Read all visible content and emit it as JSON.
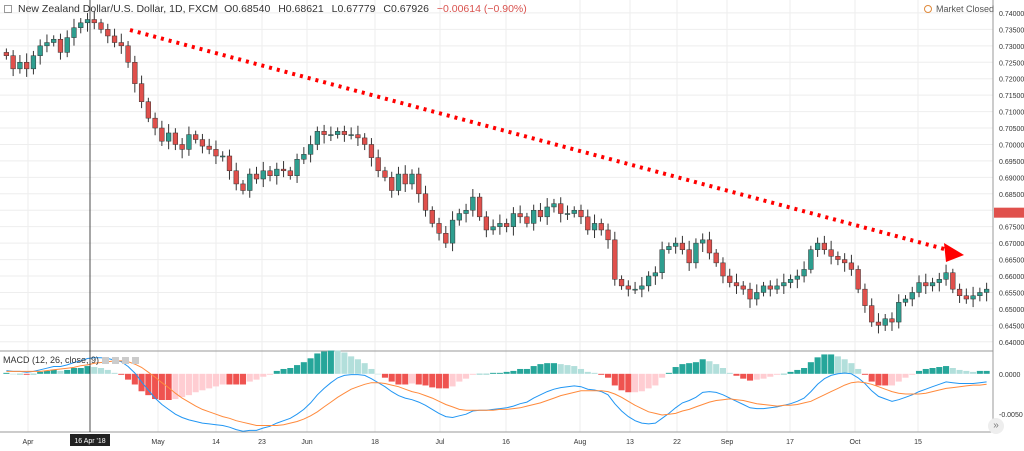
{
  "header": {
    "symbol": "New Zealand Dollar/U.S. Dollar, 1D, FXCM",
    "open": "O0.68540",
    "high": "H0.68621",
    "low": "L0.67779",
    "close": "C0.67926",
    "change": "−0.00614 (−0.90%)"
  },
  "market_status": "Market Closed",
  "macd_label": "MACD (12, 26, close, 9)",
  "crosshair_label": "16 Apr '18",
  "colors": {
    "up": "#2e9e8f",
    "down": "#e0504c",
    "hist_up_strong": "#26a69a",
    "hist_up_weak": "#b2dfdb",
    "hist_down_strong": "#ef5350",
    "hist_down_weak": "#ffcdd2",
    "macd": "#2196f3",
    "signal": "#ff8a3c",
    "arrow": "#ff0000",
    "grid": "#eeeeee"
  },
  "chart_data": [
    {
      "type": "candlestick",
      "title": "New Zealand Dollar/U.S. Dollar, 1D, FXCM",
      "y_ticks": [
        "0.74000",
        "0.73500",
        "0.73000",
        "0.72500",
        "0.72000",
        "0.71500",
        "0.71000",
        "0.70500",
        "0.70000",
        "0.69500",
        "0.69000",
        "0.68500",
        "0.68000",
        "0.67500",
        "0.67000",
        "0.66500",
        "0.66000",
        "0.65500",
        "0.65000",
        "0.64500",
        "0.64000"
      ],
      "ylim": [
        0.6375,
        0.7415
      ],
      "x_ticks": [
        "Apr",
        "16 Apr '18",
        "May",
        "14",
        "23",
        "Jun",
        "18",
        "Jul",
        "16",
        "Aug",
        "13",
        "22",
        "Sep",
        "17",
        "Oct",
        "15"
      ],
      "trend_arrow": {
        "style": "dotted",
        "direction": "down"
      },
      "closes": [
        0.727,
        0.723,
        0.725,
        0.723,
        0.727,
        0.73,
        0.731,
        0.732,
        0.728,
        0.7325,
        0.7355,
        0.737,
        0.738,
        0.737,
        0.735,
        0.733,
        0.731,
        0.73,
        0.725,
        0.7185,
        0.713,
        0.708,
        0.705,
        0.701,
        0.7035,
        0.7,
        0.6985,
        0.703,
        0.7015,
        0.6995,
        0.6985,
        0.6965,
        0.6965,
        0.692,
        0.688,
        0.686,
        0.691,
        0.6895,
        0.692,
        0.6905,
        0.6925,
        0.692,
        0.6905,
        0.6955,
        0.697,
        0.7,
        0.704,
        0.703,
        0.703,
        0.704,
        0.703,
        0.703,
        0.702,
        0.7,
        0.696,
        0.692,
        0.69,
        0.686,
        0.691,
        0.688,
        0.691,
        0.685,
        0.68,
        0.676,
        0.673,
        0.67,
        0.677,
        0.679,
        0.68,
        0.684,
        0.678,
        0.674,
        0.675,
        0.676,
        0.675,
        0.679,
        0.678,
        0.676,
        0.68,
        0.678,
        0.681,
        0.682,
        0.679,
        0.679,
        0.68,
        0.678,
        0.674,
        0.676,
        0.674,
        0.671,
        0.659,
        0.657,
        0.656,
        0.656,
        0.657,
        0.66,
        0.661,
        0.668,
        0.669,
        0.67,
        0.668,
        0.664,
        0.67,
        0.671,
        0.667,
        0.664,
        0.66,
        0.658,
        0.657,
        0.656,
        0.653,
        0.655,
        0.657,
        0.656,
        0.657,
        0.658,
        0.659,
        0.66,
        0.662,
        0.668,
        0.67,
        0.668,
        0.666,
        0.665,
        0.664,
        0.662,
        0.656,
        0.651,
        0.646,
        0.645,
        0.647,
        0.646,
        0.652,
        0.653,
        0.655,
        0.658,
        0.657,
        0.658,
        0.659,
        0.661,
        0.656,
        0.654,
        0.653,
        0.654,
        0.655,
        0.656
      ]
    },
    {
      "type": "macd",
      "title": "MACD (12, 26, close, 9)",
      "y_ticks": [
        "0.0000",
        "-0.0050"
      ],
      "ylim": [
        -0.0072,
        0.0027
      ],
      "series": [
        {
          "name": "MACD",
          "values": [
            0.0004,
            0.0003,
            0.0003,
            0.0002,
            0.0003,
            0.0005,
            0.0007,
            0.0009,
            0.0009,
            0.0011,
            0.0014,
            0.0016,
            0.0019,
            0.002,
            0.002,
            0.0019,
            0.0017,
            0.0015,
            0.0009,
            0.0001,
            -0.001,
            -0.002,
            -0.003,
            -0.0038,
            -0.0044,
            -0.005,
            -0.0054,
            -0.0057,
            -0.0059,
            -0.0061,
            -0.0062,
            -0.0063,
            -0.0064,
            -0.0066,
            -0.0069,
            -0.0071,
            -0.007,
            -0.007,
            -0.0067,
            -0.0065,
            -0.0061,
            -0.0058,
            -0.0055,
            -0.005,
            -0.0044,
            -0.0036,
            -0.0026,
            -0.0018,
            -0.0011,
            -0.0005,
            -0.0002,
            -0.0001,
            -0.0001,
            -0.0002,
            -0.0006,
            -0.0011,
            -0.0016,
            -0.0022,
            -0.0027,
            -0.003,
            -0.0032,
            -0.0035,
            -0.0039,
            -0.0044,
            -0.0049,
            -0.0053,
            -0.0054,
            -0.0052,
            -0.005,
            -0.0046,
            -0.0045,
            -0.0045,
            -0.0044,
            -0.0043,
            -0.0042,
            -0.004,
            -0.0037,
            -0.0035,
            -0.003,
            -0.0026,
            -0.0022,
            -0.0019,
            -0.0017,
            -0.0016,
            -0.0015,
            -0.0016,
            -0.0019,
            -0.002,
            -0.0022,
            -0.0026,
            -0.0037,
            -0.0046,
            -0.0053,
            -0.0058,
            -0.0061,
            -0.0062,
            -0.0061,
            -0.0055,
            -0.0049,
            -0.0042,
            -0.0036,
            -0.0033,
            -0.0029,
            -0.0023,
            -0.0022,
            -0.0023,
            -0.0026,
            -0.003,
            -0.0034,
            -0.0038,
            -0.0042,
            -0.0043,
            -0.0043,
            -0.0042,
            -0.0041,
            -0.0039,
            -0.0037,
            -0.0034,
            -0.003,
            -0.0022,
            -0.0013,
            -0.0006,
            -0.0002,
            0.0,
            0.0001,
            0.0,
            -0.0005,
            -0.0012,
            -0.0021,
            -0.0028,
            -0.0031,
            -0.0034,
            -0.0032,
            -0.0029,
            -0.0026,
            -0.0022,
            -0.0019,
            -0.0016,
            -0.0013,
            -0.001,
            -0.0011,
            -0.0012,
            -0.0012,
            -0.0012,
            -0.0011,
            -0.001
          ]
        },
        {
          "name": "Signal",
          "values": [
            0.0003,
            0.0003,
            0.0003,
            0.0003,
            0.0003,
            0.0003,
            0.0004,
            0.0005,
            0.0006,
            0.0007,
            0.0008,
            0.001,
            0.0011,
            0.0013,
            0.0014,
            0.0015,
            0.0016,
            0.0016,
            0.0015,
            0.0012,
            0.0008,
            0.0002,
            -0.0004,
            -0.0011,
            -0.0017,
            -0.0024,
            -0.003,
            -0.0035,
            -0.004,
            -0.0044,
            -0.0047,
            -0.005,
            -0.0053,
            -0.0055,
            -0.0058,
            -0.006,
            -0.0062,
            -0.0064,
            -0.0064,
            -0.0064,
            -0.0064,
            -0.0063,
            -0.0061,
            -0.0059,
            -0.0056,
            -0.0052,
            -0.0047,
            -0.0041,
            -0.0035,
            -0.0029,
            -0.0024,
            -0.0019,
            -0.0016,
            -0.0013,
            -0.0011,
            -0.0011,
            -0.0012,
            -0.0014,
            -0.0016,
            -0.0019,
            -0.0022,
            -0.0024,
            -0.0027,
            -0.003,
            -0.0034,
            -0.0038,
            -0.0041,
            -0.0044,
            -0.0045,
            -0.0045,
            -0.0045,
            -0.0045,
            -0.0045,
            -0.0044,
            -0.0044,
            -0.0043,
            -0.0042,
            -0.004,
            -0.0038,
            -0.0036,
            -0.0033,
            -0.003,
            -0.0027,
            -0.0025,
            -0.0023,
            -0.0021,
            -0.0021,
            -0.0021,
            -0.0021,
            -0.0022,
            -0.0025,
            -0.0029,
            -0.0034,
            -0.0039,
            -0.0043,
            -0.0047,
            -0.0049,
            -0.0051,
            -0.005,
            -0.0049,
            -0.0046,
            -0.0044,
            -0.0041,
            -0.0038,
            -0.0035,
            -0.0033,
            -0.0032,
            -0.0031,
            -0.0032,
            -0.0033,
            -0.0035,
            -0.0037,
            -0.0038,
            -0.0039,
            -0.004,
            -0.0039,
            -0.0039,
            -0.0038,
            -0.0036,
            -0.0034,
            -0.003,
            -0.0026,
            -0.0022,
            -0.0018,
            -0.0014,
            -0.0011,
            -0.001,
            -0.0011,
            -0.0013,
            -0.0016,
            -0.0019,
            -0.0022,
            -0.0024,
            -0.0025,
            -0.0025,
            -0.0025,
            -0.0024,
            -0.0022,
            -0.002,
            -0.0018,
            -0.0017,
            -0.0016,
            -0.0015,
            -0.0014,
            -0.0014,
            -0.0013
          ]
        }
      ]
    }
  ]
}
